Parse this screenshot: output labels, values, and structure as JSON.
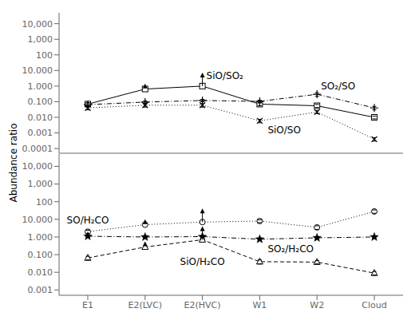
{
  "chart_data": [
    {
      "type": "line",
      "ylabel": "Abundance ratio",
      "log": "y",
      "tick_labels": "y",
      "categories": [
        "E1",
        "E2(LVC)",
        "E2(HVC)",
        "W1",
        "W2",
        "Cloud"
      ],
      "ylim": [
        5e-05,
        50000
      ],
      "yticks": [
        0.0001,
        0.001,
        {
          "value": 0.01,
          "label": "0.010"
        },
        {
          "value": 0.1,
          "label": "0.100"
        },
        {
          "value": 1,
          "label": "1.000"
        },
        {
          "value": 10,
          "label": "10.000"
        },
        100,
        {
          "value": 1000,
          "label": "1,000"
        },
        {
          "value": 10000,
          "label": "10,000"
        }
      ],
      "annotations": [
        "SiO/SO₂",
        "SO₂/SO",
        "SiO/SO"
      ],
      "series": [
        {
          "values": [
            0.07,
            0.65,
            1.0,
            0.07,
            0.055,
            0.01
          ],
          "yerr": [
            0.015,
            0.15,
            0.0,
            0.015,
            0.012,
            0.002
          ],
          "lower_limits": [
            false,
            true,
            true,
            false,
            false,
            false
          ],
          "color": "black",
          "marker": "square",
          "line_style": "solid"
        },
        {
          "values": [
            0.065,
            0.095,
            0.12,
            0.105,
            0.3,
            0.04
          ],
          "yerr": [
            0.018,
            0.02,
            0.02,
            0.02,
            0.08,
            0.01
          ],
          "lower_limits": [
            false,
            false,
            false,
            false,
            false,
            false
          ],
          "color": "black",
          "marker": "plus",
          "line_style": "dashdot"
        },
        {
          "values": [
            0.04,
            0.06,
            0.06,
            0.006,
            0.022,
            0.0004
          ],
          "yerr": [
            0.01,
            0.015,
            0.015,
            0.0015,
            0.005,
            0.0001
          ],
          "lower_limits": [
            false,
            false,
            false,
            false,
            false,
            false
          ],
          "color": "black",
          "marker": "x",
          "line_style": "dotted"
        }
      ]
    },
    {
      "type": "line",
      "log": "y",
      "categories": [
        "E1",
        "E2(LVC)",
        "E2(HVC)",
        "W1",
        "W2",
        "Cloud"
      ],
      "ylim": [
        0.0005,
        50000
      ],
      "yticks": [
        0.001,
        {
          "value": 0.01,
          "label": "0.010"
        },
        {
          "value": 0.1,
          "label": "0.100"
        },
        {
          "value": 1,
          "label": "1.000"
        },
        {
          "value": 10,
          "label": "10.000"
        },
        100,
        {
          "value": 1000,
          "label": "1,000"
        },
        {
          "value": 10000,
          "label": "10,000"
        }
      ],
      "annotations": [
        "SO/H₂CO",
        "SO₂/H₂CO",
        "SiO/H₂CO"
      ],
      "series": [
        {
          "values": [
            2.0,
            5.0,
            7.0,
            8.0,
            3.5,
            28.0
          ],
          "yerr": [
            0.4,
            1.0,
            0.0,
            1.5,
            0.8,
            6.0
          ],
          "lower_limits": [
            false,
            true,
            true,
            false,
            false,
            false
          ],
          "color": "black",
          "marker": "circle",
          "line_style": "dotted"
        },
        {
          "values": [
            1.1,
            1.0,
            1.05,
            0.75,
            0.9,
            1.0
          ],
          "yerr": [
            0.15,
            0.15,
            0.15,
            0.12,
            0.15,
            0.15
          ],
          "lower_limits": [
            false,
            false,
            false,
            false,
            false,
            false
          ],
          "color": "black",
          "marker": "star",
          "line_style": "dashdot"
        },
        {
          "values": [
            0.065,
            0.27,
            0.7,
            0.04,
            0.038,
            0.009
          ],
          "yerr": [
            0.015,
            0.06,
            0.0,
            0.01,
            0.008,
            0.002
          ],
          "lower_limits": [
            false,
            true,
            true,
            false,
            false,
            false
          ],
          "color": "black",
          "marker": "triangle",
          "line_style": "dashed"
        }
      ]
    }
  ]
}
